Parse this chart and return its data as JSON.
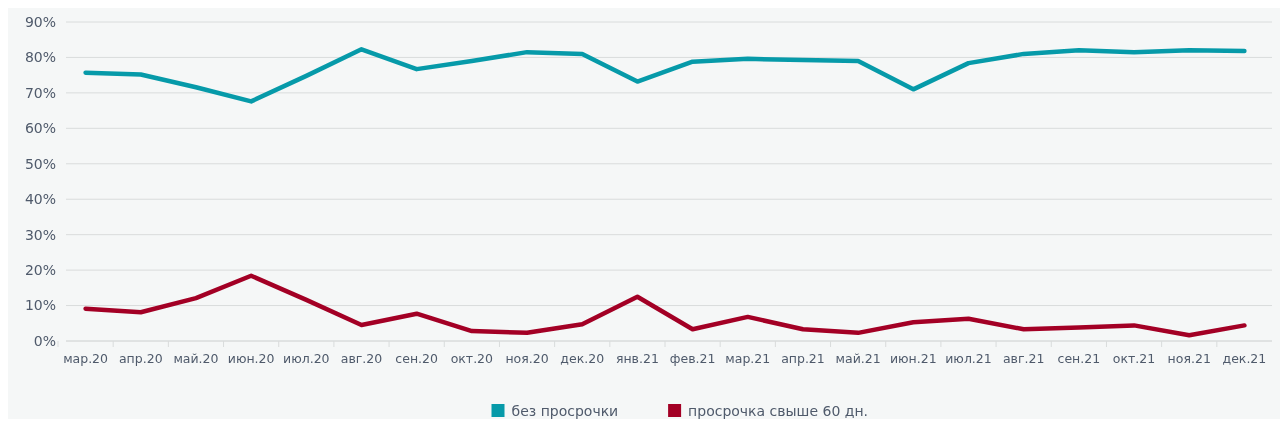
{
  "chart_data": {
    "type": "line",
    "categories": [
      "мар.20",
      "апр.20",
      "май.20",
      "июн.20",
      "июл.20",
      "авг.20",
      "сен.20",
      "окт.20",
      "ноя.20",
      "дек.20",
      "янв.21",
      "фев.21",
      "мар.21",
      "апр.21",
      "май.21",
      "июн.21",
      "июл.21",
      "авг.21",
      "сен.21",
      "окт.21",
      "ноя.21",
      "дек.21"
    ],
    "series": [
      {
        "name": "без просрочки",
        "color": "#069aa9",
        "values": [
          75.7,
          75.2,
          71.6,
          67.6,
          74.8,
          82.3,
          76.7,
          79,
          81.5,
          81,
          73.2,
          78.8,
          79.6,
          79.3,
          79,
          71,
          78.4,
          81,
          82,
          81.5,
          82,
          81.8
        ]
      },
      {
        "name": "просрочка свыше 60 дн.",
        "color": "#a30025",
        "values": [
          9.1,
          8.1,
          12.1,
          18.4,
          11.6,
          4.5,
          7.7,
          2.8,
          2.3,
          4.7,
          12.5,
          3.3,
          6.8,
          3.3,
          2.3,
          5.3,
          6.3,
          3.3,
          3.8,
          4.4,
          1.6,
          4.4
        ]
      }
    ],
    "ylim": [
      0,
      90
    ],
    "yticks": [
      {
        "value": 0,
        "label": "0%"
      },
      {
        "value": 10,
        "label": "10%"
      },
      {
        "value": 20,
        "label": "20%"
      },
      {
        "value": 30,
        "label": "30%"
      },
      {
        "value": 40,
        "label": "40%"
      },
      {
        "value": 50,
        "label": "50%"
      },
      {
        "value": 60,
        "label": "60%"
      },
      {
        "value": 70,
        "label": "70%"
      },
      {
        "value": 80,
        "label": "80%"
      },
      {
        "value": 90,
        "label": "90%"
      }
    ],
    "grid": "y",
    "legend": "bottom",
    "marker": "none",
    "line_style": "solid"
  }
}
